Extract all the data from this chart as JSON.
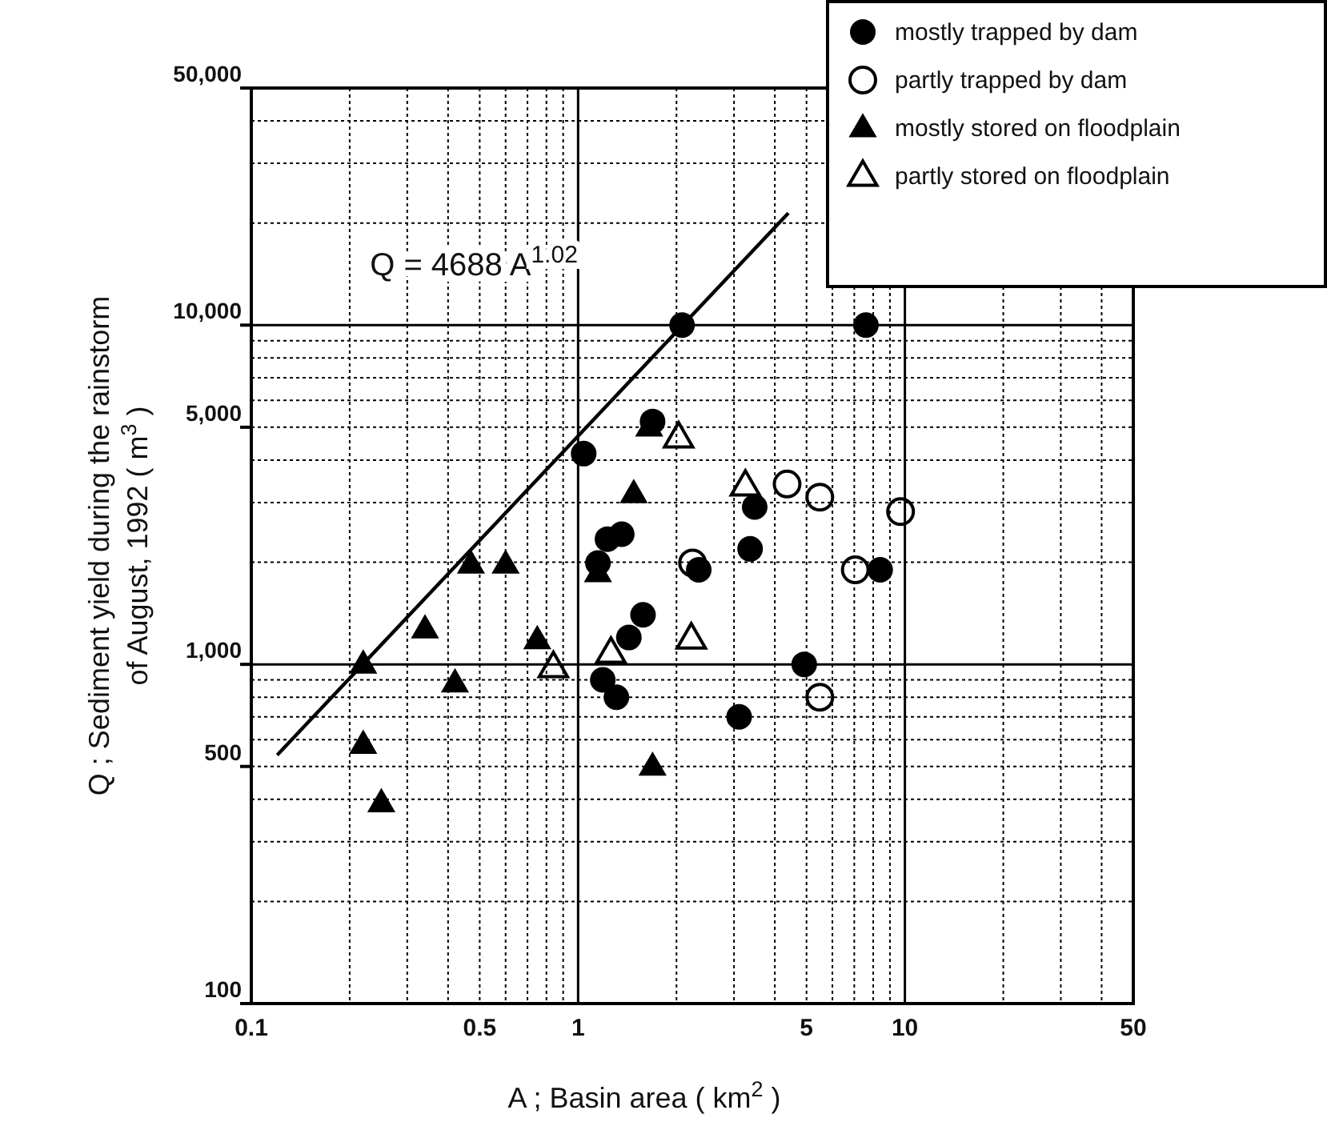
{
  "chart_data": {
    "type": "scatter",
    "xlabel": "A ; Basin area ( km$^{2}$ )",
    "ylabel": "Q ; Sediment yield during the rainstorm\nof August, 1992 ( m$^{3}$ )",
    "log": "xy",
    "grid": true,
    "legend": "top right",
    "xlim": [
      0.1,
      50
    ],
    "ylim": [
      100,
      50000
    ],
    "xticks": [
      0.1,
      {
        "value": 0.2,
        "label": null
      },
      {
        "value": 0.3,
        "label": null
      },
      {
        "value": 0.4,
        "label": null
      },
      0.5,
      {
        "value": 0.6,
        "label": null
      },
      {
        "value": 0.7,
        "label": null
      },
      {
        "value": 0.8,
        "label": null
      },
      {
        "value": 0.9,
        "label": null
      },
      1,
      {
        "value": 2,
        "label": null
      },
      {
        "value": 3,
        "label": null
      },
      {
        "value": 4,
        "label": null
      },
      5,
      {
        "value": 6,
        "label": null
      },
      {
        "value": 7,
        "label": null
      },
      {
        "value": 8,
        "label": null
      },
      {
        "value": 9,
        "label": null
      },
      10,
      {
        "value": 20,
        "label": null
      },
      {
        "value": 30,
        "label": null
      },
      {
        "value": 40,
        "label": null
      },
      50
    ],
    "yticks": [
      100,
      {
        "value": 200,
        "label": null
      },
      {
        "value": 300,
        "label": null
      },
      {
        "value": 400,
        "label": null
      },
      500,
      {
        "value": 600,
        "label": null
      },
      {
        "value": 700,
        "label": null
      },
      {
        "value": 800,
        "label": null
      },
      {
        "value": 900,
        "label": null
      },
      {
        "value": 1000,
        "label": "1,000"
      },
      {
        "value": 2000,
        "label": null
      },
      {
        "value": 3000,
        "label": null
      },
      {
        "value": 4000,
        "label": null
      },
      {
        "value": 5000,
        "label": "5,000"
      },
      {
        "value": 6000,
        "label": null
      },
      {
        "value": 7000,
        "label": null
      },
      {
        "value": 8000,
        "label": null
      },
      {
        "value": 9000,
        "label": null
      },
      {
        "value": 10000,
        "label": "10,000"
      },
      {
        "value": 20000,
        "label": null
      },
      {
        "value": 30000,
        "label": null
      },
      {
        "value": 40000,
        "label": null
      },
      {
        "value": 50000,
        "label": "50,000"
      }
    ],
    "series": [
      {
        "name": "mostly trapped by dam",
        "color": "#000000",
        "marker": "circle",
        "x": [
          2.08,
          7.6,
          1.04,
          1.69,
          3.47,
          3.36,
          2.34,
          1.36,
          1.23,
          1.15,
          1.58,
          1.43,
          1.19,
          1.31,
          3.11,
          4.92,
          8.4
        ],
        "values": [
          10000,
          10000,
          4180,
          5200,
          2910,
          2190,
          1900,
          2420,
          2340,
          1990,
          1400,
          1200,
          900,
          800,
          700,
          1000,
          1900
        ]
      },
      {
        "name": "partly trapped by dam",
        "color": "#000000",
        "marker": "circle-open",
        "x": [
          4.36,
          5.49,
          9.7,
          7.05,
          2.24,
          5.49
        ],
        "values": [
          3400,
          3110,
          2820,
          1900,
          1990,
          800
        ]
      },
      {
        "name": "mostly stored on floodplain",
        "color": "#000000",
        "marker": "triangle",
        "x": [
          0.22,
          0.22,
          0.25,
          0.34,
          0.47,
          0.6,
          0.42,
          0.75,
          1.48,
          1.15,
          1.65,
          1.69
        ],
        "values": [
          1000,
          580,
          390,
          1270,
          1970,
          1970,
          880,
          1180,
          3180,
          1860,
          5000,
          500
        ]
      },
      {
        "name": "partly stored on floodplain",
        "color": "#000000",
        "marker": "triangle-open",
        "x": [
          0.84,
          1.26,
          2.03,
          2.22,
          3.25
        ],
        "values": [
          980,
          1080,
          4660,
          1190,
          3360
        ]
      },
      {
        "type": "line",
        "color": "#000000",
        "x": [
          0.12,
          4.4
        ],
        "values": [
          540,
          21400
        ]
      }
    ],
    "annotations": [
      "Q = 4688 A$^{1.02}$"
    ]
  }
}
